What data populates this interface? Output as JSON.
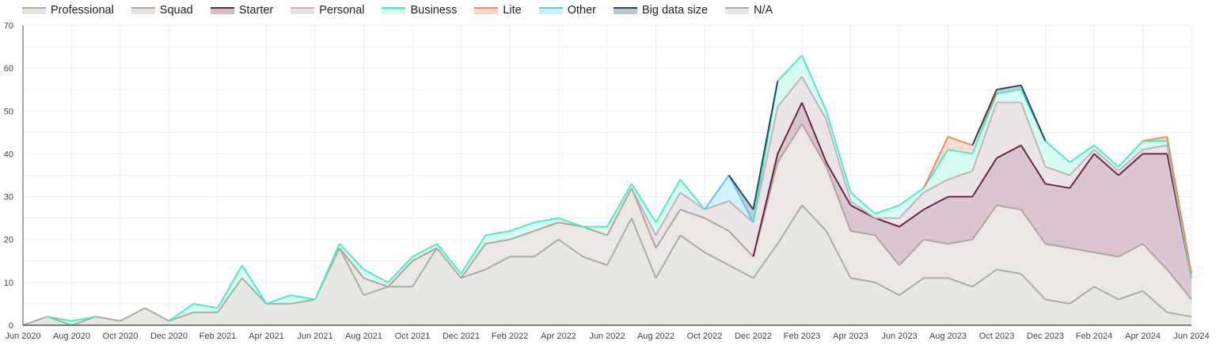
{
  "legend": [
    {
      "name": "Professional",
      "stroke": "#a9aea0",
      "fill": "#e2e4dd"
    },
    {
      "name": "Squad",
      "stroke": "#b0a49c",
      "fill": "#e6e3df"
    },
    {
      "name": "Starter",
      "stroke": "#6b2446",
      "fill": "#d2bcc8"
    },
    {
      "name": "Personal",
      "stroke": "#c6b0ba",
      "fill": "#e9e0e4"
    },
    {
      "name": "Business",
      "stroke": "#4fe8c8",
      "fill": "#cffbee"
    },
    {
      "name": "Lite",
      "stroke": "#f08a60",
      "fill": "#fdd6c8"
    },
    {
      "name": "Other",
      "stroke": "#5cc6f0",
      "fill": "#cdeffb"
    },
    {
      "name": "Big data size",
      "stroke": "#234a64",
      "fill": "#b7c6cf"
    },
    {
      "name": "N/A",
      "stroke": "#a8acb0",
      "fill": "#e4e6e8"
    }
  ],
  "chart_data": {
    "type": "area",
    "stacked": true,
    "title": "",
    "xlabel": "",
    "ylabel": "",
    "ylim": [
      0,
      70
    ],
    "yticks": [
      0,
      10,
      20,
      30,
      40,
      50,
      60,
      70
    ],
    "grid": true,
    "legend_position": "top",
    "x": [
      "Jun 2020",
      "Jul 2020",
      "Aug 2020",
      "Sep 2020",
      "Oct 2020",
      "Nov 2020",
      "Dec 2020",
      "Jan 2021",
      "Feb 2021",
      "Mar 2021",
      "Apr 2021",
      "May 2021",
      "Jun 2021",
      "Jul 2021",
      "Aug 2021",
      "Sep 2021",
      "Oct 2021",
      "Nov 2021",
      "Dec 2021",
      "Jan 2022",
      "Feb 2022",
      "Mar 2022",
      "Apr 2022",
      "May 2022",
      "Jun 2022",
      "Jul 2022",
      "Aug 2022",
      "Sep 2022",
      "Oct 2022",
      "Nov 2022",
      "Dec 2022",
      "Jan 2023",
      "Feb 2023",
      "Mar 2023",
      "Apr 2023",
      "May 2023",
      "Jun 2023",
      "Jul 2023",
      "Aug 2023",
      "Sep 2023",
      "Oct 2023",
      "Nov 2023",
      "Dec 2023",
      "Jan 2024",
      "Feb 2024",
      "Mar 2024",
      "Apr 2024",
      "May 2024",
      "Jun 2024"
    ],
    "xtick_labels": [
      "Jun 2020",
      "Aug 2020",
      "Oct 2020",
      "Dec 2020",
      "Feb 2021",
      "Apr 2021",
      "Jun 2021",
      "Aug 2021",
      "Oct 2021",
      "Dec 2021",
      "Feb 2022",
      "Apr 2022",
      "Jun 2022",
      "Aug 2022",
      "Oct 2022",
      "Dec 2022",
      "Feb 2023",
      "Apr 2023",
      "Jun 2023",
      "Aug 2023",
      "Oct 2023",
      "Dec 2023",
      "Feb 2024",
      "Apr 2024",
      "Jun 2024"
    ],
    "series": [
      {
        "name": "Professional",
        "values": [
          0,
          2,
          0,
          2,
          1,
          4,
          1,
          3,
          3,
          11,
          5,
          5,
          6,
          18,
          7,
          9,
          9,
          18,
          11,
          13,
          16,
          16,
          20,
          16,
          14,
          25,
          11,
          21,
          17,
          14,
          11,
          19,
          28,
          22,
          11,
          10,
          7,
          11,
          11,
          9,
          13,
          12,
          6,
          5,
          9,
          6,
          8,
          3,
          2
        ]
      },
      {
        "name": "Squad",
        "values": [
          0,
          0,
          0,
          0,
          0,
          0,
          0,
          0,
          0,
          0,
          0,
          0,
          0,
          0,
          4,
          0,
          6,
          0,
          0,
          6,
          4,
          6,
          4,
          7,
          7,
          7,
          7,
          6,
          8,
          8,
          5,
          19,
          19,
          15,
          11,
          11,
          7,
          9,
          8,
          11,
          15,
          15,
          13,
          13,
          8,
          10,
          11,
          10,
          4
        ]
      },
      {
        "name": "Starter",
        "values": [
          0,
          0,
          0,
          0,
          0,
          0,
          0,
          0,
          0,
          0,
          0,
          0,
          0,
          0,
          0,
          0,
          0,
          0,
          0,
          0,
          0,
          0,
          0,
          0,
          0,
          0,
          0,
          0,
          0,
          0,
          0,
          2,
          5,
          1,
          6,
          4,
          9,
          7,
          11,
          10,
          11,
          15,
          14,
          14,
          23,
          19,
          21,
          27,
          5
        ]
      },
      {
        "name": "Personal",
        "values": [
          0,
          0,
          0,
          0,
          0,
          0,
          0,
          0,
          0,
          0,
          0,
          0,
          0,
          0,
          0,
          0,
          0,
          0,
          0,
          0,
          0,
          0,
          0,
          0,
          0,
          0,
          3,
          4,
          2,
          7,
          8,
          11,
          6,
          10,
          1,
          0,
          2,
          4,
          4,
          6,
          13,
          10,
          4,
          3,
          1,
          1,
          1,
          2,
          0
        ]
      },
      {
        "name": "Business",
        "values": [
          0,
          0,
          1,
          0,
          0,
          0,
          0,
          2,
          1,
          3,
          0,
          2,
          0,
          1,
          2,
          1,
          1,
          1,
          1,
          2,
          2,
          2,
          1,
          0,
          2,
          1,
          3,
          3,
          0,
          0,
          0,
          6,
          5,
          2,
          2,
          1,
          3,
          1,
          7,
          4,
          2,
          3,
          6,
          3,
          1,
          1,
          2,
          1,
          0
        ]
      },
      {
        "name": "Lite",
        "values": [
          0,
          0,
          0,
          0,
          0,
          0,
          0,
          0,
          0,
          0,
          0,
          0,
          0,
          0,
          0,
          0,
          0,
          0,
          0,
          0,
          0,
          0,
          0,
          0,
          0,
          0,
          0,
          0,
          0,
          0,
          0,
          0,
          0,
          0,
          0,
          0,
          0,
          0,
          3,
          2,
          0,
          0,
          0,
          0,
          0,
          0,
          0,
          1,
          1
        ]
      },
      {
        "name": "Other",
        "values": [
          0,
          0,
          0,
          0,
          0,
          0,
          0,
          0,
          0,
          0,
          0,
          0,
          0,
          0,
          0,
          0,
          0,
          0,
          0,
          0,
          0,
          0,
          0,
          0,
          0,
          0,
          0,
          0,
          0,
          6,
          0,
          0,
          0,
          0,
          0,
          0,
          0,
          0,
          0,
          0,
          0,
          0,
          0,
          0,
          0,
          0,
          0,
          0,
          0
        ]
      },
      {
        "name": "Big data size",
        "values": [
          0,
          0,
          0,
          0,
          0,
          0,
          0,
          0,
          0,
          0,
          0,
          0,
          0,
          0,
          0,
          0,
          0,
          0,
          0,
          0,
          0,
          0,
          0,
          0,
          0,
          0,
          0,
          0,
          0,
          0,
          3,
          0,
          0,
          0,
          0,
          0,
          0,
          0,
          0,
          0,
          1,
          1,
          0,
          0,
          0,
          0,
          0,
          0,
          0
        ]
      },
      {
        "name": "N/A",
        "values": [
          0,
          0,
          0,
          0,
          0,
          0,
          0,
          0,
          0,
          0,
          0,
          0,
          0,
          0,
          0,
          0,
          0,
          0,
          0,
          0,
          0,
          0,
          0,
          0,
          0,
          0,
          0,
          0,
          0,
          0,
          0,
          0,
          0,
          0,
          0,
          0,
          0,
          0,
          0,
          0,
          0,
          0,
          0,
          0,
          0,
          0,
          0,
          0,
          0
        ]
      }
    ]
  }
}
